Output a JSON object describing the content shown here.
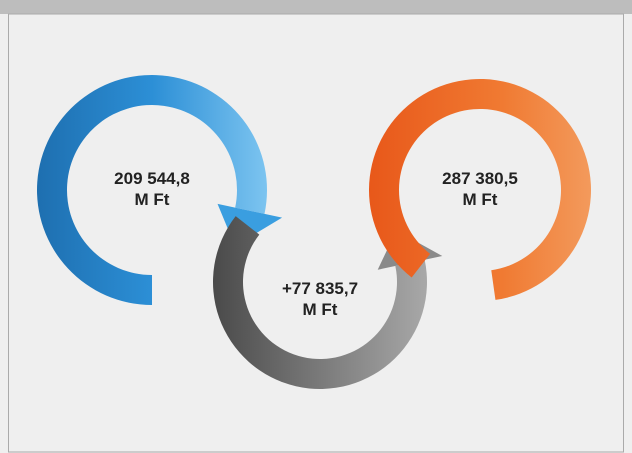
{
  "nodes": [
    {
      "value": "209 544,8",
      "unit": "M Ft"
    },
    {
      "value": "+77 835,7",
      "unit": "M Ft"
    },
    {
      "value": "287 380,5",
      "unit": "M Ft"
    }
  ]
}
